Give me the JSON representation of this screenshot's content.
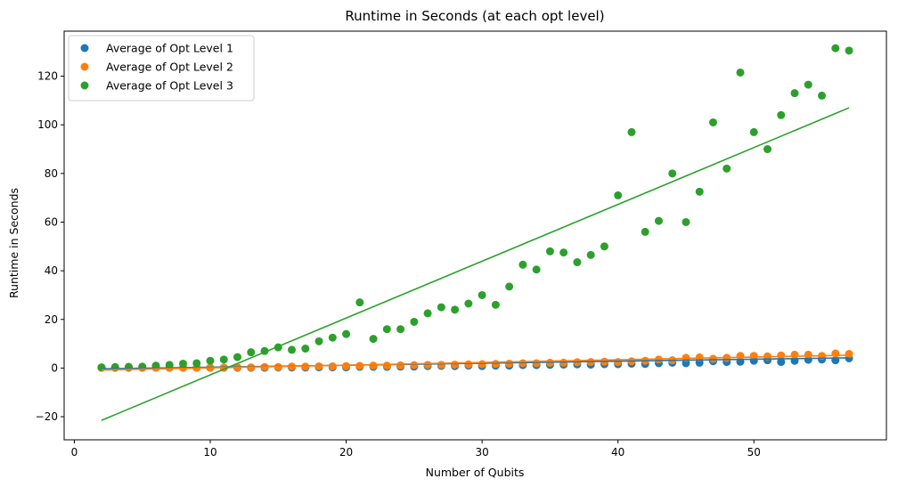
{
  "chart_data": {
    "type": "scatter",
    "title": "Runtime in Seconds (at each opt level)",
    "xlabel": "Number of Qubits",
    "ylabel": "Runtime in Seconds",
    "xlim": [
      -0.75,
      59.75
    ],
    "ylim": [
      -29.5,
      138.5
    ],
    "xticks": [
      0,
      10,
      20,
      30,
      40,
      50
    ],
    "yticks": [
      -20,
      0,
      20,
      40,
      60,
      80,
      100,
      120
    ],
    "legend_position": "top-left",
    "grid": false,
    "series": [
      {
        "name": "Average of Opt Level 1",
        "color": "#1f77b4",
        "x": [
          2,
          3,
          4,
          5,
          6,
          7,
          8,
          9,
          10,
          11,
          12,
          13,
          14,
          15,
          16,
          17,
          18,
          19,
          20,
          21,
          22,
          23,
          24,
          25,
          26,
          27,
          28,
          29,
          30,
          31,
          32,
          33,
          34,
          35,
          36,
          37,
          38,
          39,
          40,
          41,
          42,
          43,
          44,
          45,
          46,
          47,
          48,
          49,
          50,
          51,
          52,
          53,
          54,
          55,
          56,
          57
        ],
        "y": [
          0.1,
          0.1,
          0.1,
          0.1,
          0.1,
          0.1,
          0.1,
          0.1,
          0.1,
          0.1,
          0.1,
          0.1,
          0.1,
          0.2,
          0.2,
          0.2,
          0.3,
          0.3,
          0.3,
          0.5,
          0.5,
          0.5,
          0.6,
          0.6,
          0.8,
          0.9,
          0.8,
          1.0,
          0.8,
          1.0,
          1.0,
          1.2,
          1.2,
          1.3,
          1.4,
          1.5,
          1.4,
          1.6,
          1.6,
          1.8,
          1.7,
          2.0,
          2.2,
          2.0,
          2.2,
          2.8,
          2.5,
          2.6,
          3.0,
          3.2,
          2.5,
          3.0,
          3.4,
          3.5,
          3.2,
          4.0
        ],
        "trend": [
          [
            2,
            -0.3
          ],
          [
            57,
            4.2
          ]
        ]
      },
      {
        "name": "Average of Opt Level 2",
        "color": "#ff7f0e",
        "x": [
          2,
          3,
          4,
          5,
          6,
          7,
          8,
          9,
          10,
          11,
          12,
          13,
          14,
          15,
          16,
          17,
          18,
          19,
          20,
          21,
          22,
          23,
          24,
          25,
          26,
          27,
          28,
          29,
          30,
          31,
          32,
          33,
          34,
          35,
          36,
          37,
          38,
          39,
          40,
          41,
          42,
          43,
          44,
          45,
          46,
          47,
          48,
          49,
          50,
          51,
          52,
          53,
          54,
          55,
          56,
          57
        ],
        "y": [
          0.1,
          0.1,
          0.1,
          0.1,
          0.1,
          0.1,
          0.1,
          0.1,
          0.2,
          0.2,
          0.3,
          0.3,
          0.4,
          0.4,
          0.6,
          0.6,
          0.7,
          0.7,
          0.8,
          0.9,
          1.0,
          1.0,
          1.1,
          1.2,
          1.3,
          1.3,
          1.4,
          1.5,
          1.6,
          1.7,
          1.8,
          2.0,
          2.0,
          2.2,
          2.2,
          2.4,
          2.5,
          2.6,
          2.5,
          2.8,
          3.0,
          3.5,
          3.2,
          4.2,
          4.4,
          3.8,
          4.2,
          5.0,
          5.0,
          4.8,
          5.2,
          5.5,
          5.5,
          5.0,
          6.0,
          5.8
        ],
        "trend": [
          [
            2,
            -0.8
          ],
          [
            57,
            5.3
          ]
        ]
      },
      {
        "name": "Average of Opt Level 3",
        "color": "#2ca02c",
        "x": [
          2,
          3,
          4,
          5,
          6,
          7,
          8,
          9,
          10,
          11,
          12,
          13,
          14,
          15,
          16,
          17,
          18,
          19,
          20,
          21,
          22,
          23,
          24,
          25,
          26,
          27,
          28,
          29,
          30,
          31,
          32,
          33,
          34,
          35,
          36,
          37,
          38,
          39,
          40,
          41,
          42,
          43,
          44,
          45,
          46,
          47,
          48,
          49,
          50,
          51,
          52,
          53,
          54,
          55,
          56,
          57
        ],
        "y": [
          0.3,
          0.4,
          0.5,
          0.6,
          1.0,
          1.3,
          1.8,
          2.0,
          3.0,
          3.5,
          4.5,
          6.5,
          7.0,
          8.5,
          7.5,
          8.0,
          11.0,
          12.5,
          14.0,
          27.0,
          12.0,
          16.0,
          16.0,
          19.0,
          22.5,
          25.0,
          24.0,
          26.5,
          30.0,
          26.0,
          33.5,
          42.5,
          40.5,
          48.0,
          47.5,
          43.5,
          46.5,
          50.0,
          71.0,
          97.0,
          56.0,
          60.5,
          80.0,
          60.0,
          72.5,
          101.0,
          82.0,
          121.5,
          97.0,
          90.0,
          104.0,
          113.0,
          116.5,
          112.0,
          131.5,
          130.5
        ],
        "trend": [
          [
            2,
            -21.5
          ],
          [
            57,
            107.0
          ]
        ]
      }
    ]
  }
}
